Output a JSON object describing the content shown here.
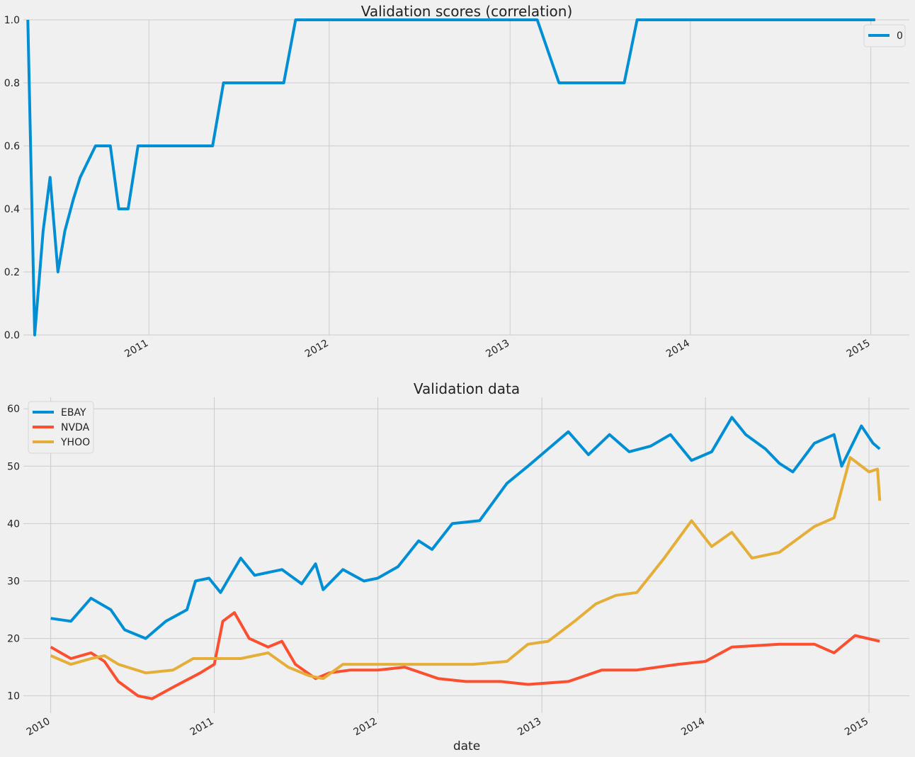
{
  "chart_data": [
    {
      "type": "line",
      "title": "Validation scores (correlation)",
      "xlabel": "",
      "ylabel": "",
      "x_axis": "date",
      "xlim": [
        "2010-04-22",
        "2015-03-20"
      ],
      "ylim": [
        0,
        1
      ],
      "yticks": [
        0.0,
        0.2,
        0.4,
        0.6,
        0.8,
        1.0
      ],
      "ytick_labels": [
        "0.0",
        "0.2",
        "0.4",
        "0.6",
        "0.8",
        "1.0"
      ],
      "xticks": [
        "2011-01-01",
        "2012-01-01",
        "2013-01-01",
        "2014-01-01",
        "2015-01-01"
      ],
      "xtick_labels": [
        "2011",
        "2012",
        "2013",
        "2014",
        "2015"
      ],
      "grid": true,
      "legend": "top-right",
      "series": [
        {
          "name": "0",
          "color": "#008fd5",
          "points": [
            [
              "2010-05-01",
              1.0
            ],
            [
              "2010-05-15",
              0.0
            ],
            [
              "2010-06-01",
              0.33
            ],
            [
              "2010-06-15",
              0.5
            ],
            [
              "2010-07-01",
              0.2
            ],
            [
              "2010-07-15",
              0.33
            ],
            [
              "2010-08-01",
              0.43
            ],
            [
              "2010-08-15",
              0.5
            ],
            [
              "2010-09-15",
              0.6
            ],
            [
              "2010-10-15",
              0.6
            ],
            [
              "2010-11-01",
              0.4
            ],
            [
              "2010-11-20",
              0.4
            ],
            [
              "2010-12-10",
              0.6
            ],
            [
              "2011-05-10",
              0.6
            ],
            [
              "2011-06-01",
              0.8
            ],
            [
              "2011-10-01",
              0.8
            ],
            [
              "2011-10-25",
              1.0
            ],
            [
              "2013-02-25",
              1.0
            ],
            [
              "2013-04-10",
              0.8
            ],
            [
              "2013-08-20",
              0.8
            ],
            [
              "2013-09-15",
              1.0
            ],
            [
              "2015-01-10",
              1.0
            ]
          ]
        }
      ]
    },
    {
      "type": "line",
      "title": "Validation data",
      "xlabel": "date",
      "ylabel": "",
      "x_axis": "date",
      "xlim": [
        "2009-11-01",
        "2015-04-01"
      ],
      "ylim": [
        7,
        62
      ],
      "yticks": [
        10,
        20,
        30,
        40,
        50,
        60
      ],
      "ytick_labels": [
        "10",
        "20",
        "30",
        "40",
        "50",
        "60"
      ],
      "xticks": [
        "2010-01-01",
        "2011-01-01",
        "2012-01-01",
        "2013-01-01",
        "2014-01-01",
        "2015-01-01"
      ],
      "xtick_labels": [
        "2010",
        "2011",
        "2012",
        "2013",
        "2014",
        "2015"
      ],
      "grid": true,
      "legend": "top-left",
      "series": [
        {
          "name": "EBAY",
          "color": "#008fd5",
          "points": [
            [
              "2010-01-01",
              23.5
            ],
            [
              "2010-02-15",
              23.0
            ],
            [
              "2010-04-01",
              27.0
            ],
            [
              "2010-05-15",
              25.0
            ],
            [
              "2010-06-15",
              21.5
            ],
            [
              "2010-08-01",
              20.0
            ],
            [
              "2010-09-15",
              23.0
            ],
            [
              "2010-11-01",
              25.0
            ],
            [
              "2010-11-20",
              30.0
            ],
            [
              "2010-12-20",
              30.5
            ],
            [
              "2011-01-15",
              28.0
            ],
            [
              "2011-03-01",
              34.0
            ],
            [
              "2011-04-01",
              31.0
            ],
            [
              "2011-06-01",
              32.0
            ],
            [
              "2011-07-15",
              29.5
            ],
            [
              "2011-08-15",
              33.0
            ],
            [
              "2011-09-01",
              28.5
            ],
            [
              "2011-10-15",
              32.0
            ],
            [
              "2011-12-01",
              30.0
            ],
            [
              "2012-01-01",
              30.5
            ],
            [
              "2012-02-15",
              32.5
            ],
            [
              "2012-04-01",
              37.0
            ],
            [
              "2012-05-01",
              35.5
            ],
            [
              "2012-06-15",
              40.0
            ],
            [
              "2012-08-15",
              40.5
            ],
            [
              "2012-10-15",
              47.0
            ],
            [
              "2012-12-01",
              50.0
            ],
            [
              "2013-01-15",
              53.0
            ],
            [
              "2013-03-01",
              56.0
            ],
            [
              "2013-04-15",
              52.0
            ],
            [
              "2013-06-01",
              55.5
            ],
            [
              "2013-07-15",
              52.5
            ],
            [
              "2013-09-01",
              53.5
            ],
            [
              "2013-10-15",
              55.5
            ],
            [
              "2013-12-01",
              51.0
            ],
            [
              "2014-01-15",
              52.5
            ],
            [
              "2014-03-01",
              58.5
            ],
            [
              "2014-04-01",
              55.5
            ],
            [
              "2014-05-15",
              53.0
            ],
            [
              "2014-06-15",
              50.5
            ],
            [
              "2014-07-15",
              49.0
            ],
            [
              "2014-09-01",
              54.0
            ],
            [
              "2014-10-15",
              55.5
            ],
            [
              "2014-11-01",
              50.0
            ],
            [
              "2014-12-15",
              57.0
            ],
            [
              "2015-01-10",
              54.0
            ],
            [
              "2015-01-25",
              53.0
            ]
          ]
        },
        {
          "name": "NVDA",
          "color": "#fc4f30",
          "points": [
            [
              "2010-01-01",
              18.5
            ],
            [
              "2010-02-15",
              16.5
            ],
            [
              "2010-04-01",
              17.5
            ],
            [
              "2010-05-01",
              16.0
            ],
            [
              "2010-06-01",
              12.5
            ],
            [
              "2010-07-15",
              10.0
            ],
            [
              "2010-08-15",
              9.5
            ],
            [
              "2010-10-01",
              11.5
            ],
            [
              "2010-12-01",
              14.0
            ],
            [
              "2011-01-01",
              15.5
            ],
            [
              "2011-01-20",
              23.0
            ],
            [
              "2011-02-15",
              24.5
            ],
            [
              "2011-03-20",
              20.0
            ],
            [
              "2011-05-01",
              18.5
            ],
            [
              "2011-06-01",
              19.5
            ],
            [
              "2011-07-01",
              15.5
            ],
            [
              "2011-08-15",
              13.0
            ],
            [
              "2011-09-15",
              14.0
            ],
            [
              "2011-11-01",
              14.5
            ],
            [
              "2012-01-01",
              14.5
            ],
            [
              "2012-03-01",
              15.0
            ],
            [
              "2012-05-15",
              13.0
            ],
            [
              "2012-07-15",
              12.5
            ],
            [
              "2012-10-01",
              12.5
            ],
            [
              "2012-12-01",
              12.0
            ],
            [
              "2013-03-01",
              12.5
            ],
            [
              "2013-05-15",
              14.5
            ],
            [
              "2013-08-01",
              14.5
            ],
            [
              "2013-11-01",
              15.5
            ],
            [
              "2014-01-01",
              16.0
            ],
            [
              "2014-03-01",
              18.5
            ],
            [
              "2014-06-15",
              19.0
            ],
            [
              "2014-09-01",
              19.0
            ],
            [
              "2014-10-15",
              17.5
            ],
            [
              "2014-12-01",
              20.5
            ],
            [
              "2015-01-25",
              19.5
            ]
          ]
        },
        {
          "name": "YHOO",
          "color": "#e5ae38",
          "points": [
            [
              "2010-01-01",
              17.0
            ],
            [
              "2010-02-15",
              15.5
            ],
            [
              "2010-04-01",
              16.5
            ],
            [
              "2010-05-01",
              17.0
            ],
            [
              "2010-06-01",
              15.5
            ],
            [
              "2010-08-01",
              14.0
            ],
            [
              "2010-10-01",
              14.5
            ],
            [
              "2010-11-15",
              16.5
            ],
            [
              "2011-01-01",
              16.5
            ],
            [
              "2011-03-01",
              16.5
            ],
            [
              "2011-05-01",
              17.5
            ],
            [
              "2011-06-15",
              15.0
            ],
            [
              "2011-08-01",
              13.5
            ],
            [
              "2011-09-01",
              13.0
            ],
            [
              "2011-10-15",
              15.5
            ],
            [
              "2011-12-01",
              15.5
            ],
            [
              "2012-02-01",
              15.5
            ],
            [
              "2012-05-01",
              15.5
            ],
            [
              "2012-08-01",
              15.5
            ],
            [
              "2012-10-15",
              16.0
            ],
            [
              "2012-12-01",
              19.0
            ],
            [
              "2013-01-15",
              19.5
            ],
            [
              "2013-03-15",
              23.0
            ],
            [
              "2013-05-01",
              26.0
            ],
            [
              "2013-06-15",
              27.5
            ],
            [
              "2013-08-01",
              28.0
            ],
            [
              "2013-10-01",
              34.0
            ],
            [
              "2013-12-01",
              40.5
            ],
            [
              "2014-01-15",
              36.0
            ],
            [
              "2014-03-01",
              38.5
            ],
            [
              "2014-04-15",
              34.0
            ],
            [
              "2014-06-15",
              35.0
            ],
            [
              "2014-09-01",
              39.5
            ],
            [
              "2014-10-15",
              41.0
            ],
            [
              "2014-11-20",
              51.5
            ],
            [
              "2015-01-01",
              49.0
            ],
            [
              "2015-01-20",
              49.5
            ],
            [
              "2015-01-25",
              44.0
            ]
          ]
        }
      ]
    }
  ]
}
